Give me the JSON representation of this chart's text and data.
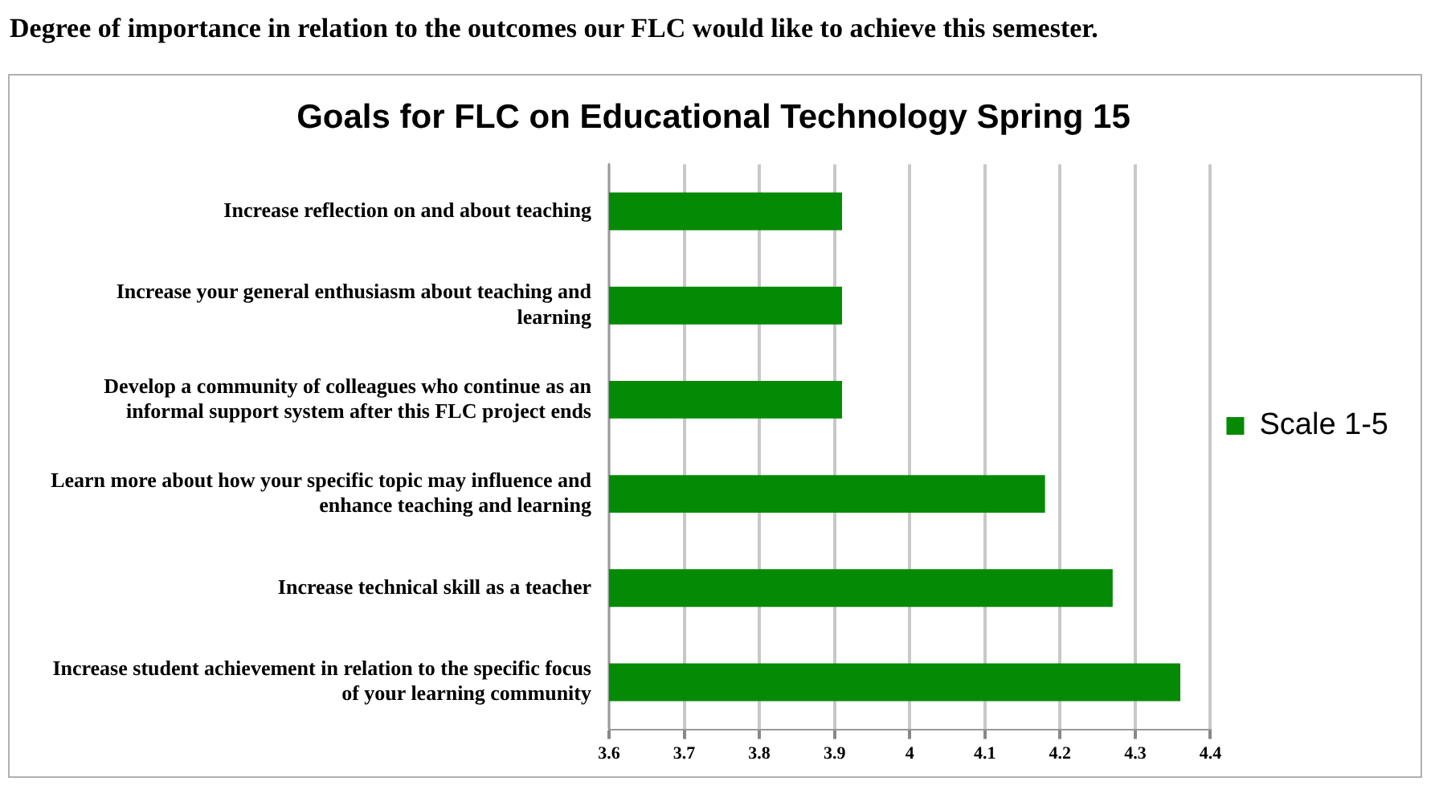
{
  "chart_data": {
    "type": "bar",
    "orientation": "horizontal",
    "title": "Goals for FLC on Educational Technology Spring 15",
    "subtitle": "Degree of importance in relation to the outcomes our FLC would like to achieve this semester.",
    "categories": [
      "Increase reflection on and about teaching",
      "Increase your general enthusiasm about teaching and learning",
      "Develop a community of colleagues who continue as an informal support system after this FLC project ends",
      "Learn more about how your specific topic may influence and enhance teaching and learning",
      "Increase technical skill as a teacher",
      "Increase student achievement in relation to the specific focus of your learning community"
    ],
    "series": [
      {
        "name": "Scale 1-5",
        "color": "#048a04",
        "values": [
          3.91,
          3.91,
          3.91,
          4.18,
          4.27,
          4.36
        ]
      }
    ],
    "xlim": [
      3.6,
      4.4
    ],
    "xticks": [
      3.6,
      3.7,
      3.8,
      3.9,
      4,
      4.1,
      4.2,
      4.3,
      4.4
    ],
    "grid": "x",
    "legend": "right"
  }
}
